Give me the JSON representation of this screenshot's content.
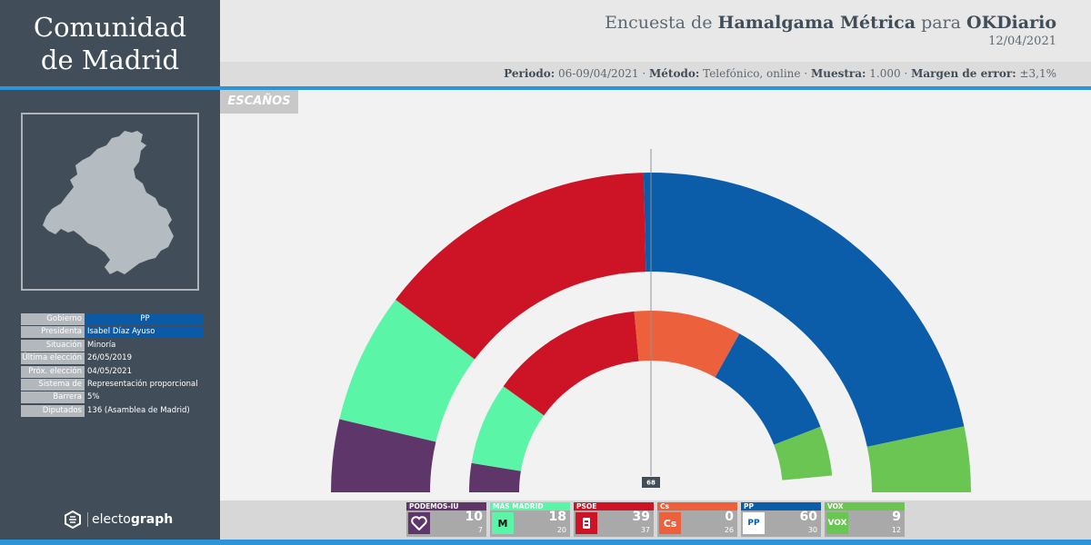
{
  "region": {
    "line1": "Comunidad",
    "line2": "de Madrid"
  },
  "header": {
    "title_pre": "Encuesta de ",
    "pollster": "Hamalgama Métrica",
    "title_mid": " para ",
    "media": "OKDiario",
    "date": "12/04/2021"
  },
  "meta": {
    "periodo_label": "Periodo:",
    "periodo": "06-09/04/2021",
    "metodo_label": "Método:",
    "metodo": "Telefónico, online",
    "muestra_label": "Muestra:",
    "muestra": "1.000",
    "margen_label": "Margen de error:",
    "margen": "±3,1%",
    "sep": " · "
  },
  "tag": "ESCAÑOS",
  "info": [
    {
      "label": "Gobierno",
      "value": "PP"
    },
    {
      "label": "Presidenta",
      "value": "Isabel Díaz Ayuso"
    },
    {
      "label": "Situación",
      "value": "Minoría"
    },
    {
      "label": "Última elección",
      "value": "26/05/2019"
    },
    {
      "label": "Próx. elección",
      "value": "04/05/2021"
    },
    {
      "label": "Sistema de voto",
      "value": "Representación proporcional"
    },
    {
      "label": "Barrera",
      "value": "5%"
    },
    {
      "label": "Diputados",
      "value": "136 (Asamblea de Madrid)"
    }
  ],
  "brand": {
    "pre": "electo",
    "bold": "graph"
  },
  "chart_data": {
    "type": "hemicycle",
    "total_seats": 136,
    "majority": 68,
    "majority_label": "68",
    "parties": [
      {
        "name": "PODEMOS-IU",
        "color": "#5f3669",
        "seats": 10,
        "previous": 7
      },
      {
        "name": "MÁS MADRID",
        "color": "#5bf5a8",
        "seats": 18,
        "previous": 20
      },
      {
        "name": "PSOE",
        "color": "#cc1426",
        "seats": 39,
        "previous": 37
      },
      {
        "name": "Cs",
        "color": "#ec603c",
        "seats": 0,
        "previous": 26
      },
      {
        "name": "PP",
        "color": "#0b5daa",
        "seats": 60,
        "previous": 30
      },
      {
        "name": "VOX",
        "color": "#6ac552",
        "seats": 9,
        "previous": 12
      }
    ]
  }
}
